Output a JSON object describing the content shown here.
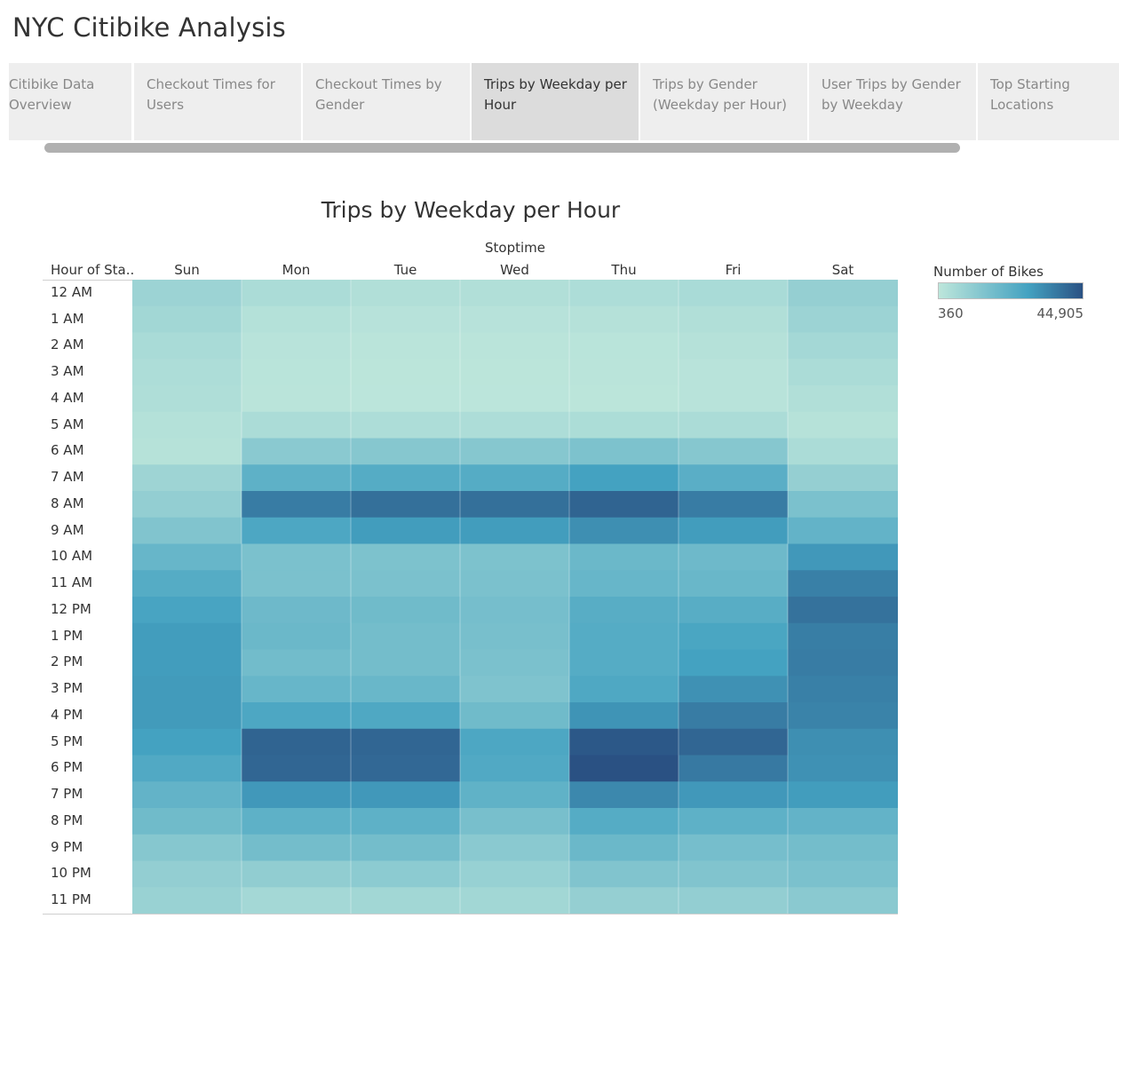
{
  "app_title": "NYC Citibike Analysis",
  "tabs": [
    {
      "label": "Citibike Data Overview",
      "active": false
    },
    {
      "label": "Checkout Times for Users",
      "active": false
    },
    {
      "label": "Checkout Times by Gender",
      "active": false
    },
    {
      "label": "Trips by Weekday per Hour",
      "active": true
    },
    {
      "label": "Trips by Gender (Weekday per Hour)",
      "active": false
    },
    {
      "label": "User Trips by Gender by Weekday",
      "active": false
    },
    {
      "label": "Top Starting Locations",
      "active": false
    }
  ],
  "chart_data": {
    "type": "heatmap",
    "title": "Trips by Weekday per Hour",
    "column_group_label": "Stoptime",
    "row_header": "Hour of Sta..",
    "columns": [
      "Sun",
      "Mon",
      "Tue",
      "Wed",
      "Thu",
      "Fri",
      "Sat"
    ],
    "rows": [
      "12 AM",
      "1 AM",
      "2 AM",
      "3 AM",
      "4 AM",
      "5 AM",
      "6 AM",
      "7 AM",
      "8 AM",
      "9 AM",
      "10 AM",
      "11 AM",
      "12 PM",
      "1 PM",
      "2 PM",
      "3 PM",
      "4 PM",
      "5 PM",
      "6 PM",
      "7 PM",
      "8 PM",
      "9 PM",
      "10 PM",
      "11 PM"
    ],
    "values": [
      [
        8000,
        4500,
        3200,
        3200,
        4000,
        5000,
        9500
      ],
      [
        6500,
        2500,
        1800,
        1800,
        2200,
        3200,
        8000
      ],
      [
        5000,
        1500,
        1100,
        1100,
        1300,
        2200,
        6000
      ],
      [
        4000,
        1200,
        900,
        900,
        1000,
        1600,
        4500
      ],
      [
        3500,
        1000,
        800,
        800,
        900,
        1500,
        3200
      ],
      [
        2500,
        4500,
        4000,
        4000,
        4200,
        4500,
        2000
      ],
      [
        2000,
        12000,
        13000,
        13000,
        15000,
        13000,
        4500
      ],
      [
        7500,
        22000,
        24000,
        24000,
        28000,
        23000,
        9500
      ],
      [
        10000,
        36000,
        38500,
        38500,
        41000,
        36000,
        15500
      ],
      [
        14000,
        26000,
        29000,
        29000,
        32000,
        29000,
        21000
      ],
      [
        20000,
        15500,
        15000,
        15000,
        19000,
        18500,
        30000
      ],
      [
        24000,
        15500,
        15500,
        15500,
        20000,
        19500,
        35000
      ],
      [
        27000,
        18500,
        18000,
        16500,
        23500,
        23500,
        38000
      ],
      [
        29000,
        19000,
        17000,
        16000,
        24000,
        26500,
        35500
      ],
      [
        29000,
        17500,
        17000,
        15500,
        24000,
        28000,
        36000
      ],
      [
        29500,
        20000,
        19500,
        14500,
        25500,
        31500,
        35000
      ],
      [
        29500,
        26000,
        25500,
        18000,
        31000,
        36000,
        34500
      ],
      [
        28000,
        41000,
        40500,
        26000,
        43500,
        40500,
        32000
      ],
      [
        25000,
        40500,
        40000,
        25000,
        44905,
        36500,
        31500
      ],
      [
        21000,
        30000,
        30000,
        21500,
        33500,
        30000,
        29000
      ],
      [
        18000,
        22000,
        22000,
        16000,
        24000,
        22000,
        21000
      ],
      [
        13000,
        17000,
        17000,
        12000,
        19000,
        16500,
        17000
      ],
      [
        10000,
        10500,
        11500,
        9000,
        14000,
        14000,
        15500
      ],
      [
        8500,
        6000,
        6500,
        6500,
        9500,
        10000,
        12000
      ]
    ],
    "min": 360,
    "max": 44905,
    "legend": {
      "title": "Number of Bikes",
      "min_label": "360",
      "max_label": "44,905",
      "color_low": "#bde6db",
      "color_mid": "#44a2c1",
      "color_high": "#2a5183"
    }
  }
}
